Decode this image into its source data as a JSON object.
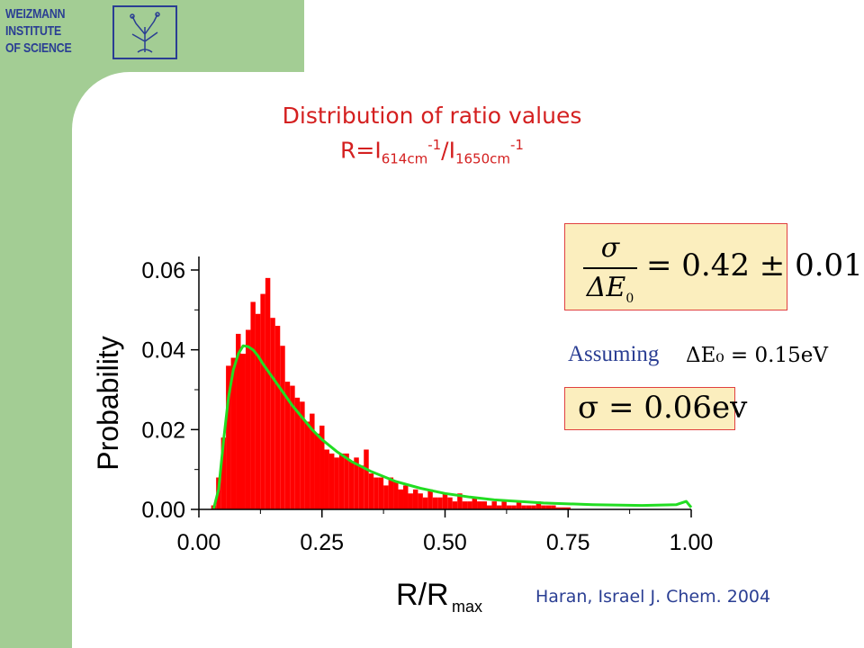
{
  "logo": {
    "lines": [
      "WEIZMANN",
      "INSTITUTE",
      "OF SCIENCE"
    ],
    "emblem": "weizmann-emblem-icon"
  },
  "title": {
    "line1": "Distribution of ratio values",
    "line2_prefix": "R=I",
    "line2_sub1": "614cm",
    "line2_sup1": "-1",
    "line2_mid": "/I",
    "line2_sub2": "1650cm",
    "line2_sup2": "-1"
  },
  "formula1": {
    "numerator": "σ",
    "denominator": "ΔE",
    "denominator_sub": "0",
    "rhs": "= 0.42 ± 0.01"
  },
  "assumption": {
    "label": "Assuming",
    "equation": "ΔE₀ = 0.15eV"
  },
  "formula2": {
    "text": "σ = 0.06ev"
  },
  "citation": "Haran, Israel J. Chem. 2004",
  "colors": {
    "frame": "#a3cd94",
    "logo_blue": "#2a3e93",
    "title_red": "#d42020",
    "bar_red": "#ff0000",
    "fit_green": "#22dd22",
    "box_fill": "#fbeebe",
    "box_border": "#e04040"
  },
  "chart_data": {
    "type": "bar",
    "subtype": "histogram-with-fit-curve",
    "xlabel": "R/R",
    "xlabel_sub": "max",
    "ylabel": "Probability",
    "xlim": [
      0.0,
      1.0
    ],
    "ylim": [
      0.0,
      0.06
    ],
    "xticks": [
      "0.00",
      "0.25",
      "0.50",
      "0.75",
      "1.00"
    ],
    "yticks": [
      "0.00",
      "0.02",
      "0.04",
      "0.06"
    ],
    "bin_width": 0.01,
    "series": [
      {
        "kind": "histogram",
        "x": [
          0.03,
          0.04,
          0.05,
          0.06,
          0.07,
          0.08,
          0.09,
          0.1,
          0.11,
          0.12,
          0.13,
          0.14,
          0.15,
          0.16,
          0.17,
          0.18,
          0.19,
          0.2,
          0.21,
          0.22,
          0.23,
          0.24,
          0.25,
          0.26,
          0.27,
          0.28,
          0.29,
          0.3,
          0.31,
          0.32,
          0.33,
          0.34,
          0.35,
          0.36,
          0.37,
          0.38,
          0.39,
          0.4,
          0.41,
          0.42,
          0.43,
          0.44,
          0.45,
          0.46,
          0.47,
          0.48,
          0.49,
          0.5,
          0.51,
          0.52,
          0.53,
          0.54,
          0.55,
          0.56,
          0.57,
          0.58,
          0.59,
          0.6,
          0.61,
          0.62,
          0.63,
          0.64,
          0.65,
          0.66,
          0.67,
          0.68,
          0.69,
          0.7,
          0.71,
          0.72,
          0.73,
          0.74,
          0.75
        ],
        "values": [
          0.001,
          0.008,
          0.018,
          0.036,
          0.038,
          0.044,
          0.039,
          0.045,
          0.052,
          0.049,
          0.054,
          0.058,
          0.048,
          0.046,
          0.041,
          0.032,
          0.031,
          0.028,
          0.027,
          0.022,
          0.024,
          0.019,
          0.021,
          0.015,
          0.014,
          0.013,
          0.014,
          0.014,
          0.012,
          0.013,
          0.011,
          0.015,
          0.009,
          0.008,
          0.008,
          0.006,
          0.008,
          0.007,
          0.005,
          0.006,
          0.004,
          0.005,
          0.004,
          0.003,
          0.005,
          0.003,
          0.003,
          0.004,
          0.003,
          0.002,
          0.004,
          0.002,
          0.002,
          0.003,
          0.002,
          0.002,
          0.001,
          0.002,
          0.001,
          0.002,
          0.001,
          0.001,
          0.002,
          0.001,
          0.001,
          0.001,
          0.002,
          0.001,
          0.001,
          0.001,
          0.0005,
          0.0005,
          0.0005
        ]
      },
      {
        "kind": "fit",
        "x": [
          0.03,
          0.04,
          0.05,
          0.06,
          0.07,
          0.08,
          0.09,
          0.1,
          0.11,
          0.12,
          0.13,
          0.15,
          0.17,
          0.19,
          0.21,
          0.23,
          0.25,
          0.28,
          0.31,
          0.35,
          0.4,
          0.45,
          0.5,
          0.55,
          0.6,
          0.7,
          0.8,
          0.9,
          0.97,
          0.99,
          1.0
        ],
        "values": [
          0.0002,
          0.005,
          0.017,
          0.028,
          0.035,
          0.039,
          0.041,
          0.0408,
          0.04,
          0.0385,
          0.0365,
          0.033,
          0.0295,
          0.026,
          0.023,
          0.02,
          0.0175,
          0.0145,
          0.012,
          0.0095,
          0.007,
          0.0053,
          0.004,
          0.0031,
          0.0024,
          0.0016,
          0.0012,
          0.001,
          0.0012,
          0.002,
          0.0005
        ]
      }
    ]
  }
}
